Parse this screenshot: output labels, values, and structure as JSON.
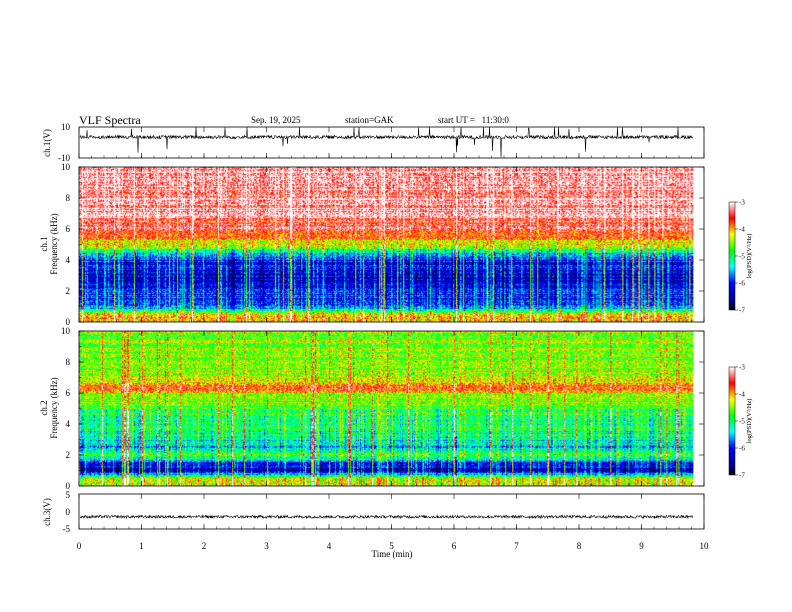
{
  "header": {
    "title": "VLF Spectra",
    "date": "Sep. 19, 2025",
    "station": "station=GAK",
    "start_ut": "start UT =   11:30:0"
  },
  "chart_data": {
    "type": "heatmap",
    "x_axis": {
      "label": "Time (min)",
      "range": [
        0,
        10
      ],
      "ticks": [
        "0",
        "1",
        "2",
        "3",
        "4",
        "5",
        "6",
        "7",
        "8",
        "9",
        "10"
      ],
      "data_end": 9.83
    },
    "panels": [
      {
        "id": "ch1-waveform",
        "type": "line",
        "ylabel": "ch.1(V)",
        "ylim": [
          -10,
          10
        ],
        "yticks": [
          "10",
          "-10"
        ],
        "baseline": 3.5,
        "color": "#000000"
      },
      {
        "id": "ch1-spectrogram",
        "type": "heatmap",
        "ylabel_line1": "ch.1",
        "ylabel_line2": "Frequency (kHz)",
        "ylim": [
          0,
          10
        ],
        "yticks": [
          "10",
          "8",
          "6",
          "4",
          "2",
          "0"
        ],
        "colorbar": {
          "label": "log(PSD)(V²/Hz)",
          "range": [
            -7,
            -3
          ],
          "ticks": [
            "-3",
            "-4",
            "-5",
            "-6",
            "-7"
          ]
        },
        "profile": {
          "freq_khz": [
            0,
            0.5,
            1,
            2,
            3,
            4,
            4.5,
            5,
            6,
            7,
            10
          ],
          "log_psd": [
            -4.3,
            -4.0,
            -5.8,
            -6.0,
            -6.3,
            -6.0,
            -5.3,
            -4.3,
            -3.5,
            -3.2,
            -3.2
          ]
        }
      },
      {
        "id": "ch2-spectrogram",
        "type": "heatmap",
        "ylabel_line1": "ch.2",
        "ylabel_line2": "Frequency (kHz)",
        "ylim": [
          0,
          10
        ],
        "yticks": [
          "10",
          "8",
          "6",
          "4",
          "2",
          "0"
        ],
        "colorbar": {
          "label": "log(PSD)(V²/Hz)",
          "range": [
            -7,
            -3
          ],
          "ticks": [
            "-3",
            "-4",
            "-5",
            "-6",
            "-7"
          ]
        },
        "profile": {
          "freq_khz": [
            0,
            0.5,
            1,
            1.5,
            2,
            2.5,
            3,
            4,
            5,
            6,
            6.3,
            7,
            8,
            10
          ],
          "log_psd": [
            -4.5,
            -4.2,
            -6.3,
            -6.2,
            -4.6,
            -5.5,
            -5.3,
            -5.0,
            -4.8,
            -4.4,
            -3.7,
            -4.4,
            -4.6,
            -4.5
          ]
        }
      },
      {
        "id": "ch3-waveform",
        "type": "line",
        "ylabel": "ch.3(V)",
        "ylim": [
          -5,
          5
        ],
        "yticks": [
          "5",
          "0",
          "-5"
        ],
        "baseline": -1.5,
        "color": "#000000"
      }
    ],
    "colormap": [
      "#000080",
      "#0000ff",
      "#00ffff",
      "#00ff00",
      "#ffff00",
      "#ff0000",
      "#ffffff"
    ]
  }
}
